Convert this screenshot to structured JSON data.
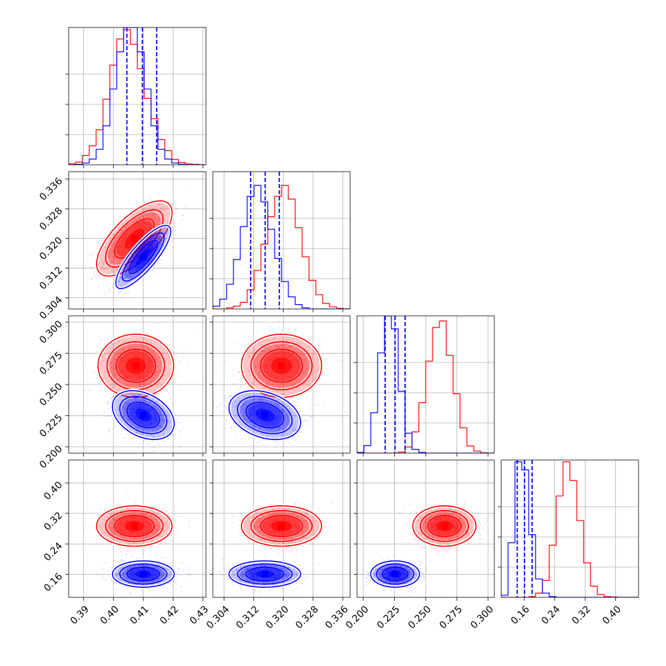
{
  "chart_data": {
    "type": "corner",
    "grid": true,
    "n_params": 4,
    "series": [
      {
        "name": "",
        "color": "#ff0000"
      },
      {
        "name": "",
        "color": "#0000ff"
      }
    ],
    "axes": [
      {
        "range": [
          0.385,
          0.431
        ],
        "ticks": [
          0.39,
          0.4,
          0.41,
          0.42,
          0.43
        ],
        "tick_labels": [
          "0.39",
          "0.40",
          "0.41",
          "0.42",
          "0.43"
        ]
      },
      {
        "range": [
          0.301,
          0.338
        ],
        "ticks": [
          0.304,
          0.312,
          0.32,
          0.328,
          0.336
        ],
        "tick_labels": [
          "0.304",
          "0.312",
          "0.320",
          "0.328",
          "0.336"
        ]
      },
      {
        "range": [
          0.195,
          0.305
        ],
        "ticks": [
          0.2,
          0.225,
          0.25,
          0.275,
          0.3
        ],
        "tick_labels": [
          "0.200",
          "0.225",
          "0.250",
          "0.275",
          "0.300"
        ]
      },
      {
        "range": [
          0.1,
          0.46
        ],
        "ticks": [
          0.16,
          0.24,
          0.32,
          0.4
        ],
        "tick_labels": [
          "0.16",
          "0.24",
          "0.32",
          "0.40"
        ]
      }
    ],
    "hist_ymax": [
      0.31,
      0.25,
      0.4,
      0.39
    ],
    "histograms": [
      {
        "bin_edges": [
          0.385,
          0.3873,
          0.3896,
          0.3919,
          0.3942,
          0.3965,
          0.3988,
          0.4011,
          0.4034,
          0.4057,
          0.408,
          0.4103,
          0.4126,
          0.4149,
          0.4172,
          0.4195,
          0.4218,
          0.4241,
          0.4264,
          0.4287,
          0.431
        ],
        "red": [
          0.002,
          0.006,
          0.021,
          0.043,
          0.079,
          0.148,
          0.225,
          0.284,
          0.305,
          0.272,
          0.217,
          0.15,
          0.104,
          0.057,
          0.032,
          0.012,
          0.005,
          0.002,
          0.001,
          0.0
        ],
        "blue": [
          0.0,
          0.001,
          0.004,
          0.013,
          0.035,
          0.088,
          0.171,
          0.255,
          0.31,
          0.31,
          0.255,
          0.171,
          0.088,
          0.035,
          0.013,
          0.004,
          0.001,
          0.0,
          0.0,
          0.0
        ],
        "blue_quantiles": [
          0.4045,
          0.4097,
          0.4145
        ]
      },
      {
        "bin_edges": [
          0.301,
          0.30285,
          0.3047,
          0.30655,
          0.3084,
          0.31025,
          0.3121,
          0.31395,
          0.3158,
          0.31765,
          0.3195,
          0.32135,
          0.3232,
          0.32505,
          0.3269,
          0.32875,
          0.3306,
          0.33245,
          0.3343,
          0.33615,
          0.338
        ],
        "red": [
          0.0,
          0.0,
          0.002,
          0.005,
          0.012,
          0.035,
          0.07,
          0.118,
          0.168,
          0.205,
          0.225,
          0.2,
          0.148,
          0.095,
          0.052,
          0.026,
          0.01,
          0.004,
          0.001,
          0.0
        ],
        "blue": [
          0.005,
          0.018,
          0.045,
          0.09,
          0.15,
          0.205,
          0.225,
          0.195,
          0.145,
          0.092,
          0.05,
          0.022,
          0.008,
          0.002,
          0.0,
          0.0,
          0.0,
          0.0,
          0.0,
          0.0
        ],
        "blue_quantiles": [
          0.3112,
          0.3151,
          0.3189
        ]
      },
      {
        "bin_edges": [
          0.195,
          0.2005,
          0.206,
          0.2115,
          0.217,
          0.2225,
          0.228,
          0.2335,
          0.239,
          0.2445,
          0.25,
          0.2555,
          0.261,
          0.2665,
          0.272,
          0.2775,
          0.283,
          0.2885,
          0.294,
          0.2995,
          0.305
        ],
        "red": [
          0.0,
          0.0,
          0.0,
          0.0,
          0.0,
          0.0,
          0.003,
          0.018,
          0.062,
          0.147,
          0.268,
          0.366,
          0.385,
          0.285,
          0.173,
          0.074,
          0.021,
          0.006,
          0.001,
          0.0
        ],
        "blue": [
          0.002,
          0.022,
          0.118,
          0.292,
          0.4,
          0.362,
          0.18,
          0.058,
          0.011,
          0.002,
          0.0,
          0.0,
          0.0,
          0.0,
          0.0,
          0.0,
          0.0,
          0.0,
          0.0,
          0.0
        ],
        "blue_quantiles": [
          0.2175,
          0.2255,
          0.2335
        ]
      },
      {
        "bin_edges": [
          0.1,
          0.118,
          0.136,
          0.154,
          0.172,
          0.19,
          0.208,
          0.226,
          0.244,
          0.262,
          0.28,
          0.298,
          0.316,
          0.334,
          0.352,
          0.37,
          0.388,
          0.406,
          0.424,
          0.442,
          0.46
        ],
        "red": [
          0.0,
          0.0,
          0.0,
          0.0,
          0.002,
          0.012,
          0.048,
          0.148,
          0.288,
          0.385,
          0.332,
          0.218,
          0.098,
          0.032,
          0.008,
          0.002,
          0.001,
          0.0,
          0.0,
          0.0
        ],
        "blue": [
          0.006,
          0.155,
          0.385,
          0.362,
          0.178,
          0.052,
          0.012,
          0.002,
          0.0,
          0.0,
          0.0,
          0.0,
          0.0,
          0.0,
          0.0,
          0.0,
          0.0,
          0.0,
          0.0,
          0.0
        ],
        "blue_quantiles": [
          0.142,
          0.161,
          0.181
        ]
      }
    ],
    "pairs": [
      {
        "row": 1,
        "col": 0,
        "red": {
          "mean": [
            0.407,
            0.32
          ],
          "sd": [
            0.0055,
            0.0044
          ],
          "rho": 0.68
        },
        "blue": {
          "mean": [
            0.41,
            0.315
          ],
          "sd": [
            0.004,
            0.0037
          ],
          "rho": 0.82
        }
      },
      {
        "row": 2,
        "col": 0,
        "red": {
          "mean": [
            0.4075,
            0.265
          ],
          "sd": [
            0.0055,
            0.011
          ],
          "rho": 0.0
        },
        "blue": {
          "mean": [
            0.41,
            0.2255
          ],
          "sd": [
            0.0045,
            0.0085
          ],
          "rho": -0.35
        }
      },
      {
        "row": 2,
        "col": 1,
        "red": {
          "mean": [
            0.3195,
            0.265
          ],
          "sd": [
            0.0047,
            0.011
          ],
          "rho": 0.0
        },
        "blue": {
          "mean": [
            0.315,
            0.2255
          ],
          "sd": [
            0.0042,
            0.0085
          ],
          "rho": -0.3
        }
      },
      {
        "row": 3,
        "col": 0,
        "red": {
          "mean": [
            0.407,
            0.287
          ],
          "sd": [
            0.0055,
            0.023
          ],
          "rho": 0.0
        },
        "blue": {
          "mean": [
            0.41,
            0.161
          ],
          "sd": [
            0.0045,
            0.015
          ],
          "rho": 0.0
        }
      },
      {
        "row": 3,
        "col": 1,
        "red": {
          "mean": [
            0.3195,
            0.287
          ],
          "sd": [
            0.0047,
            0.023
          ],
          "rho": 0.0
        },
        "blue": {
          "mean": [
            0.315,
            0.161
          ],
          "sd": [
            0.0042,
            0.015
          ],
          "rho": 0.0
        }
      },
      {
        "row": 3,
        "col": 2,
        "red": {
          "mean": [
            0.265,
            0.287
          ],
          "sd": [
            0.011,
            0.023
          ],
          "rho": 0.0
        },
        "blue": {
          "mean": [
            0.2255,
            0.161
          ],
          "sd": [
            0.0085,
            0.015
          ],
          "rho": 0.0
        }
      }
    ]
  }
}
